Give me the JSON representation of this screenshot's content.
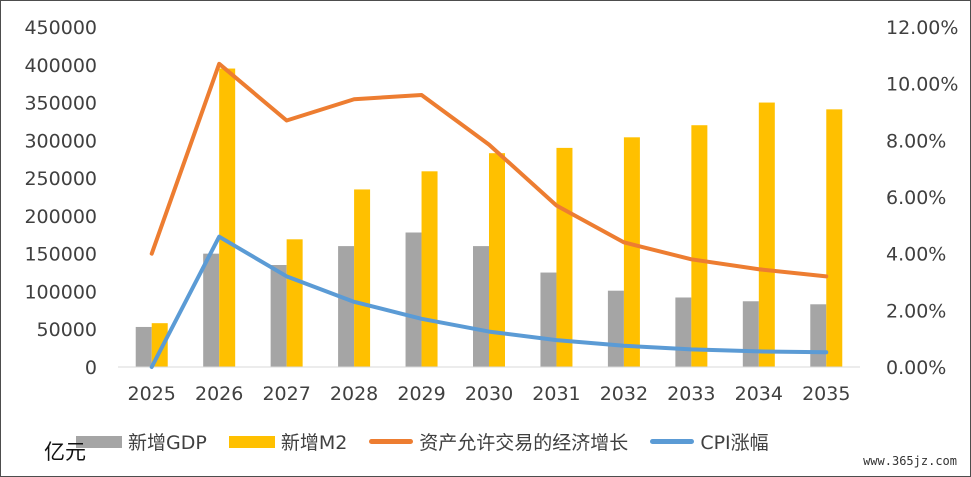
{
  "chart_data": {
    "type": "bar",
    "categories": [
      "2025",
      "2026",
      "2027",
      "2028",
      "2029",
      "2030",
      "2031",
      "2032",
      "2033",
      "2034",
      "2035"
    ],
    "series": [
      {
        "name": "新增GDP",
        "type": "bar",
        "axis": "left",
        "color": "#a5a5a5",
        "values": [
          53000,
          150000,
          135000,
          160000,
          178000,
          160000,
          125000,
          101000,
          92000,
          87000,
          83000
        ]
      },
      {
        "name": "新增M2",
        "type": "bar",
        "axis": "left",
        "color": "#ffc000",
        "values": [
          58000,
          395000,
          169000,
          235000,
          259000,
          283000,
          290000,
          304000,
          320000,
          350000,
          341000
        ]
      },
      {
        "name": "资产允许交易的经济增长",
        "type": "line",
        "axis": "right",
        "color": "#ed7d31",
        "values": [
          4.0,
          10.7,
          8.7,
          9.45,
          9.6,
          7.85,
          5.7,
          4.4,
          3.8,
          3.45,
          3.2
        ]
      },
      {
        "name": "CPI涨幅",
        "type": "line",
        "axis": "right",
        "color": "#5b9bd5",
        "values": [
          0.0,
          4.6,
          3.2,
          2.3,
          1.7,
          1.25,
          0.95,
          0.75,
          0.62,
          0.55,
          0.52
        ]
      }
    ],
    "y_left": {
      "min": 0,
      "max": 450000,
      "ticks": [
        "0",
        "50000",
        "100000",
        "150000",
        "200000",
        "250000",
        "300000",
        "350000",
        "400000",
        "450000"
      ]
    },
    "y_right": {
      "min": 0,
      "max": 12,
      "ticks": [
        "0.00%",
        "2.00%",
        "4.00%",
        "6.00%",
        "8.00%",
        "10.00%",
        "12.00%"
      ]
    },
    "ylabel": "亿元",
    "grid": false,
    "legend_position": "bottom"
  },
  "watermark": "www.365jz.com"
}
